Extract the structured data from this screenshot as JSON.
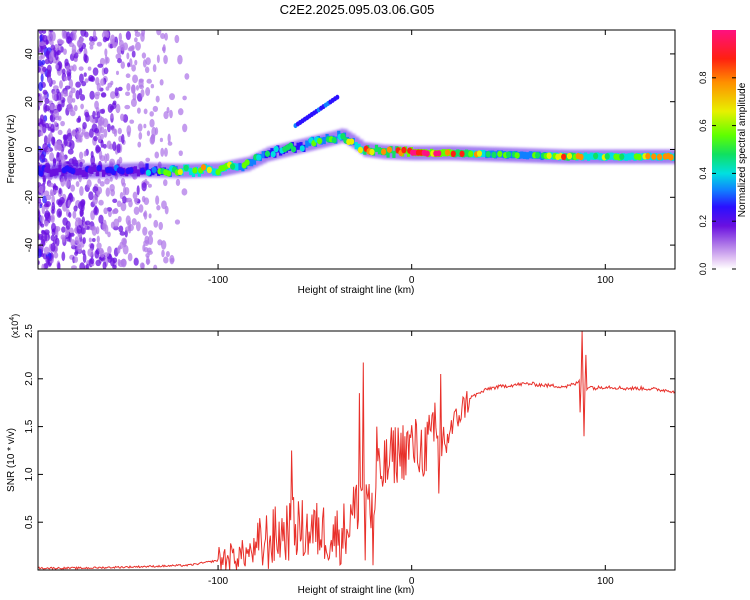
{
  "title": "C2E2.2025.095.03.06.G05",
  "chart_data": [
    {
      "type": "heatmap",
      "xlabel": "Height of straight line (km)",
      "ylabel": "Frequency (Hz)",
      "xlim": [
        -193,
        136
      ],
      "ylim": [
        -50,
        50
      ],
      "xticks": [
        {
          "v": -100,
          "label": "-100"
        },
        {
          "v": 0,
          "label": "0"
        },
        {
          "v": 100,
          "label": "100"
        }
      ],
      "yticks": [
        {
          "v": -40,
          "label": "-40"
        },
        {
          "v": -20,
          "label": "-20"
        },
        {
          "v": 0,
          "label": "0"
        },
        {
          "v": 20,
          "label": "20"
        },
        {
          "v": 40,
          "label": "40"
        }
      ],
      "colorbar": {
        "label": "Normalized spectral amplitude",
        "range": [
          0,
          1
        ],
        "ticks": [
          {
            "v": 0,
            "label": "0.0"
          },
          {
            "v": 0.2,
            "label": "0.2"
          },
          {
            "v": 0.4,
            "label": "0.4"
          },
          {
            "v": 0.6,
            "label": "0.6"
          },
          {
            "v": 0.8,
            "label": "0.8"
          }
        ],
        "colors": [
          "#ffffff",
          "#e4c8f4",
          "#b07ae8",
          "#6a10e0",
          "#2a10ff",
          "#1080ff",
          "#00e0e0",
          "#10e060",
          "#60ff00",
          "#e8f000",
          "#ff9000",
          "#ff2010",
          "#ff1080"
        ]
      },
      "ridge": {
        "x": [
          -193,
          -160,
          -140,
          -120,
          -100,
          -85,
          -75,
          -60,
          -50,
          -40,
          -36,
          -30,
          -25,
          -15,
          0,
          20,
          40,
          60,
          80,
          100,
          120,
          136
        ],
        "freq": [
          -9,
          -9,
          -8.5,
          -9,
          -8.5,
          -6,
          -2,
          1,
          3,
          5,
          6,
          3,
          0,
          -1,
          -1.5,
          -1.5,
          -2,
          -2.5,
          -3,
          -3,
          -3,
          -3
        ],
        "amplitude": [
          0.2,
          0.25,
          0.3,
          0.6,
          0.7,
          0.55,
          0.45,
          0.45,
          0.5,
          0.5,
          0.55,
          0.6,
          0.75,
          0.85,
          0.9,
          0.88,
          0.55,
          0.5,
          0.75,
          0.6,
          0.7,
          0.7
        ]
      }
    },
    {
      "type": "line",
      "xlabel": "Height of straight line (km)",
      "ylabel": "SNR (10 * v/v)",
      "scale_label": "(x10",
      "scale_exp": "4",
      "scale_close": ")",
      "xlim": [
        -193,
        136
      ],
      "ylim": [
        0,
        2.5
      ],
      "xticks": [
        {
          "v": -100,
          "label": "-100"
        },
        {
          "v": 0,
          "label": "0"
        },
        {
          "v": 100,
          "label": "100"
        }
      ],
      "yticks": [
        {
          "v": 0.5,
          "label": "0.5"
        },
        {
          "v": 1.0,
          "label": "1.0"
        },
        {
          "v": 1.5,
          "label": "1.5"
        },
        {
          "v": 2.0,
          "label": "2.0"
        },
        {
          "v": 2.5,
          "label": "2.5"
        }
      ],
      "color": "#e8302a",
      "series": [
        {
          "name": "SNR",
          "x": [
            -193,
            -170,
            -150,
            -130,
            -115,
            -100,
            -90,
            -80,
            -75,
            -70,
            -65,
            -60,
            -55,
            -50,
            -45,
            -40,
            -35,
            -30,
            -27,
            -25,
            -22,
            -20,
            -18,
            -15,
            -12,
            -10,
            -5,
            0,
            5,
            10,
            15,
            20,
            25,
            30,
            35,
            40,
            50,
            60,
            70,
            80,
            85,
            88,
            90,
            92,
            95,
            100,
            110,
            120,
            136
          ],
          "values": [
            0.02,
            0.02,
            0.03,
            0.04,
            0.05,
            0.1,
            0.15,
            0.2,
            0.3,
            0.35,
            0.4,
            0.45,
            0.4,
            0.4,
            0.4,
            0.35,
            0.4,
            0.6,
            0.75,
            0.9,
            0.7,
            0.5,
            0.9,
            1.05,
            1.1,
            1.2,
            1.25,
            1.3,
            1.25,
            1.35,
            1.3,
            1.45,
            1.65,
            1.8,
            1.85,
            1.9,
            1.93,
            1.95,
            1.93,
            1.92,
            1.95,
            2.0,
            1.9,
            1.92,
            1.9,
            1.92,
            1.9,
            1.9,
            1.87
          ],
          "spikes": [
            {
              "x": -62,
              "value": 1.25
            },
            {
              "x": -63,
              "value": 0.7
            },
            {
              "x": -48,
              "value": 0.55
            },
            {
              "x": -25,
              "value": 2.17
            },
            {
              "x": -24,
              "value": 0.1
            },
            {
              "x": -27,
              "value": 1.85
            },
            {
              "x": -20,
              "value": 0.05
            },
            {
              "x": -18,
              "value": 1.5
            },
            {
              "x": -22,
              "value": 0.9
            },
            {
              "x": 12,
              "value": 1.75
            },
            {
              "x": 15,
              "value": 2.05
            },
            {
              "x": 14,
              "value": 0.8
            },
            {
              "x": 88,
              "value": 2.5
            },
            {
              "x": 89,
              "value": 1.4
            },
            {
              "x": 90,
              "value": 2.25
            },
            {
              "x": 87,
              "value": 1.65
            }
          ]
        }
      ]
    }
  ]
}
